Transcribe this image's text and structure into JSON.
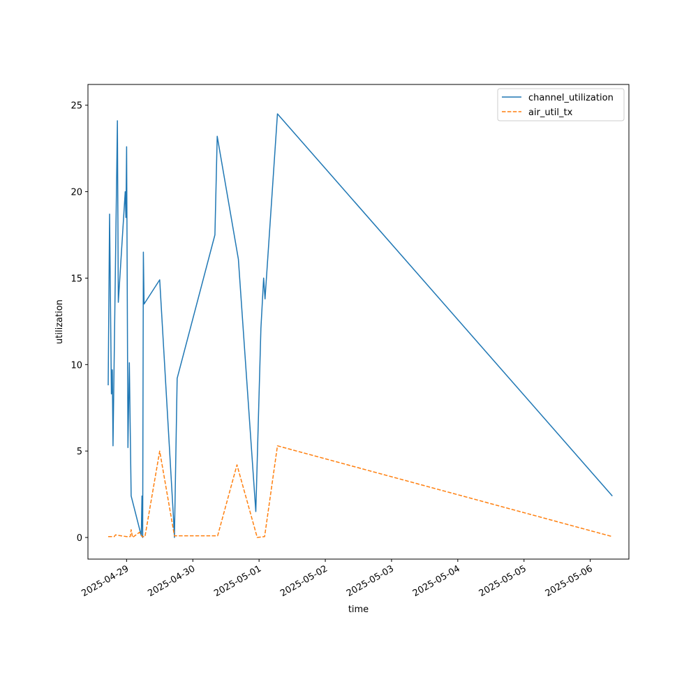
{
  "chart_data": {
    "type": "line",
    "title": "",
    "xlabel": "time",
    "ylabel": "utilization",
    "xlim": [
      "2025-04-28T10:00",
      "2025-05-06T14:00"
    ],
    "ylim": [
      -1.25,
      26.2
    ],
    "x_ticks": [
      "2025-04-29",
      "2025-04-30",
      "2025-05-01",
      "2025-05-02",
      "2025-05-03",
      "2025-05-04",
      "2025-05-05",
      "2025-05-06"
    ],
    "y_ticks": [
      0,
      5,
      10,
      15,
      20,
      25
    ],
    "grid": false,
    "legend_position": "top-right",
    "series": [
      {
        "name": "channel_utilization",
        "color": "#1f77b4",
        "dash": "solid",
        "points": [
          [
            "2025-04-28T17:20",
            8.8
          ],
          [
            "2025-04-28T17:50",
            18.7
          ],
          [
            "2025-04-28T18:30",
            8.3
          ],
          [
            "2025-04-28T18:50",
            9.7
          ],
          [
            "2025-04-28T19:05",
            5.3
          ],
          [
            "2025-04-28T20:40",
            24.1
          ],
          [
            "2025-04-28T21:00",
            13.6
          ],
          [
            "2025-04-28T23:30",
            20.0
          ],
          [
            "2025-04-28T23:45",
            18.5
          ],
          [
            "2025-04-29T00:00",
            22.6
          ],
          [
            "2025-04-29T00:30",
            5.2
          ],
          [
            "2025-04-29T01:00",
            10.1
          ],
          [
            "2025-04-29T01:40",
            2.4
          ],
          [
            "2025-04-29T05:20",
            0.1
          ],
          [
            "2025-04-29T05:35",
            2.4
          ],
          [
            "2025-04-29T05:50",
            0.0
          ],
          [
            "2025-04-29T06:05",
            16.5
          ],
          [
            "2025-04-29T06:20",
            13.5
          ],
          [
            "2025-04-29T12:00",
            14.9
          ],
          [
            "2025-04-29T17:00",
            1.1
          ],
          [
            "2025-04-29T17:20",
            0.0
          ],
          [
            "2025-04-29T18:20",
            9.2
          ],
          [
            "2025-04-30T08:00",
            17.5
          ],
          [
            "2025-04-30T08:50",
            23.2
          ],
          [
            "2025-04-30T16:30",
            16.1
          ],
          [
            "2025-04-30T22:50",
            1.5
          ],
          [
            "2025-05-01T00:40",
            12.1
          ],
          [
            "2025-05-01T01:40",
            15.0
          ],
          [
            "2025-05-01T02:10",
            13.8
          ],
          [
            "2025-05-01T06:40",
            24.5
          ],
          [
            "2025-05-06T08:00",
            2.4
          ]
        ]
      },
      {
        "name": "air_util_tx",
        "color": "#ff7f0e",
        "dash": "dashed",
        "points": [
          [
            "2025-04-28T17:20",
            0.05
          ],
          [
            "2025-04-28T19:30",
            0.05
          ],
          [
            "2025-04-28T20:00",
            0.15
          ],
          [
            "2025-04-28T22:00",
            0.1
          ],
          [
            "2025-04-29T00:00",
            0.05
          ],
          [
            "2025-04-29T01:20",
            0.05
          ],
          [
            "2025-04-29T01:40",
            0.45
          ],
          [
            "2025-04-29T02:10",
            0.0
          ],
          [
            "2025-04-29T04:40",
            0.3
          ],
          [
            "2025-04-29T05:40",
            0.05
          ],
          [
            "2025-04-29T06:40",
            0.05
          ],
          [
            "2025-04-29T12:00",
            5.0
          ],
          [
            "2025-04-29T17:20",
            0.1
          ],
          [
            "2025-04-29T18:30",
            0.1
          ],
          [
            "2025-04-30T09:00",
            0.1
          ],
          [
            "2025-04-30T16:00",
            4.2
          ],
          [
            "2025-04-30T23:20",
            0.0
          ],
          [
            "2025-05-01T02:00",
            0.05
          ],
          [
            "2025-05-01T06:40",
            5.3
          ],
          [
            "2025-05-06T08:00",
            0.05
          ]
        ]
      }
    ]
  }
}
